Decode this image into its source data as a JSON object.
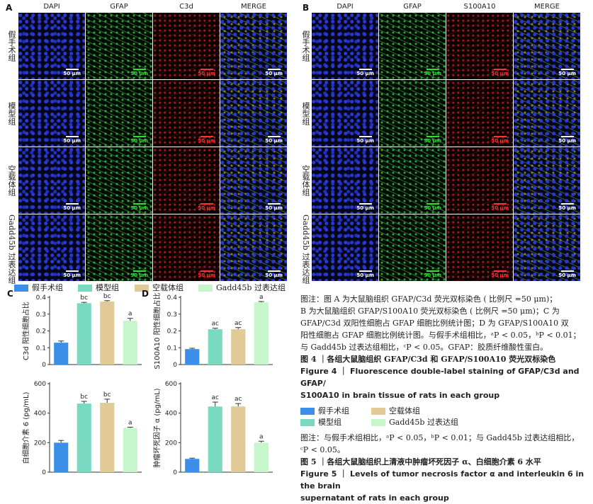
{
  "colors": {
    "sham": "#3d8ee8",
    "model": "#7ad9c1",
    "empty": "#e2ca97",
    "gadd": "#c6f6cc",
    "dapi_tint": "#1a2aa8",
    "gfap_tint": "#1f8a2a",
    "red_tint": "#b01818"
  },
  "panel_a": {
    "letter": "A",
    "columns": [
      "DAPI",
      "GFAP",
      "C3d",
      "MERGE"
    ],
    "scale_bars": [
      "50 μm",
      "50 μm",
      "50 μm",
      "50 μm"
    ]
  },
  "panel_b": {
    "letter": "B",
    "columns": [
      "DAPI",
      "GFAP",
      "S100A10",
      "MERGE"
    ],
    "scale_bars": [
      "50 μm",
      "50 μm",
      "50 μm",
      "50 μm"
    ]
  },
  "row_labels": [
    "假手术组",
    "模型组",
    "空载体组",
    "Gadd45b 过表达组"
  ],
  "legend": [
    {
      "label": "假手术组",
      "color": "#3d8ee8"
    },
    {
      "label": "模型组",
      "color": "#7ad9c1"
    },
    {
      "label": "空载体组",
      "color": "#e2ca97"
    },
    {
      "label": "Gadd45b 过表达组",
      "color": "#c6f6cc"
    }
  ],
  "chart_data": [
    {
      "panel": "C",
      "type": "bar",
      "ylabel": "C3d 阳性细胞占比",
      "ylim": [
        0,
        0.4
      ],
      "yticks": [
        0,
        0.1,
        0.2,
        0.3,
        0.4
      ],
      "ytick_labels": [
        "0",
        "0.1",
        "0.2",
        "0.3",
        "0.4"
      ],
      "categories": [
        "假手术组",
        "模型组",
        "空载体组",
        "Gadd45b 过表达组"
      ],
      "values": [
        0.13,
        0.365,
        0.375,
        0.26
      ],
      "errors": [
        0.01,
        0.005,
        0.005,
        0.015
      ],
      "labels": [
        "",
        "bc",
        "bc",
        "a"
      ]
    },
    {
      "panel": "D",
      "type": "bar",
      "ylabel": "S100A10 阳性细胞占比",
      "ylim": [
        0,
        0.4
      ],
      "yticks": [
        0,
        0.1,
        0.2,
        0.3,
        0.4
      ],
      "ytick_labels": [
        "0",
        "0.1",
        "0.2",
        "0.3",
        "0.4"
      ],
      "categories": [
        "假手术组",
        "模型组",
        "空载体组",
        "Gadd45b 过表达组"
      ],
      "values": [
        0.092,
        0.21,
        0.21,
        0.37
      ],
      "errors": [
        0.005,
        0.006,
        0.01,
        0.005
      ],
      "labels": [
        "",
        "ac",
        "ac",
        "a"
      ]
    },
    {
      "panel": "",
      "type": "bar",
      "ylabel": "白细胞介素 6 (pg/mL)",
      "ylim": [
        0,
        600
      ],
      "yticks": [
        0,
        200,
        400,
        600
      ],
      "ytick_labels": [
        "0",
        "200",
        "400",
        "600"
      ],
      "categories": [
        "假手术组",
        "模型组",
        "空载体组",
        "Gadd45b 过表达组"
      ],
      "values": [
        200,
        465,
        470,
        300
      ],
      "errors": [
        15,
        15,
        25,
        5
      ],
      "labels": [
        "",
        "bc",
        "bc",
        "a"
      ]
    },
    {
      "panel": "",
      "type": "bar",
      "ylabel": "肿瘤坏死因子 α (pg/mL)",
      "ylim": [
        0,
        600
      ],
      "yticks": [
        0,
        200,
        400,
        600
      ],
      "ytick_labels": [
        "0",
        "200",
        "400",
        "600"
      ],
      "categories": [
        "假手术组",
        "模型组",
        "空载体组",
        "Gadd45b 过表达组"
      ],
      "values": [
        90,
        445,
        445,
        200
      ],
      "errors": [
        5,
        30,
        20,
        10
      ],
      "labels": [
        "",
        "ac",
        "ac",
        "a"
      ]
    }
  ],
  "caption4": {
    "note_lines": [
      "图注：图 A 为大鼠脑组织 GFAP/C3d 荧光双标染色 ( 比例尺 =50 μm)；",
      "B 为大鼠脑组织 GFAP/S100A10 荧光双标染色 ( 比例尺 =50 μm)；C 为",
      "GFAP/C3d 双阳性细胞占 GFAP 细胞比例统计图；D 为 GFAP/S100A10 双",
      "阳性细胞占 GFAP 细胞比例统计图。与假手术组相比，ᵃP < 0.05，ᵇP < 0.01；",
      "与 Gadd45b 过表达组相比，ᶜP < 0.05。GFAP：胶质纤维酸性蛋白。"
    ],
    "title_cn": "图 4 ｜各组大鼠脑组织 GFAP/C3d 和 GFAP/S100A10 荧光双标染色",
    "title_en_1": "Figure 4 ｜ Fluorescence double-label staining of GFAP/C3d and GFAP/",
    "title_en_2": "S100A10 in brain tissue of rats in each group"
  },
  "legend5": [
    {
      "label": "假手术组",
      "color": "#3d8ee8"
    },
    {
      "label": "空载体组",
      "color": "#e2ca97"
    },
    {
      "label": "模型组",
      "color": "#7ad9c1"
    },
    {
      "label": "Gadd45b 过表达组",
      "color": "#c6f6cc"
    }
  ],
  "caption5": {
    "note_lines": [
      "图注：与假手术组相比，ᵃP < 0.05，ᵇP < 0.01；与 Gadd45b 过表达组相比，",
      "ᶜP < 0.05。"
    ],
    "title_cn": "图 5 ｜各组大鼠脑组织上清液中肿瘤坏死因子 α、白细胞介素 6 水平",
    "title_en_1": "Figure 5 ｜ Levels of tumor necrosis factor α and interleukin 6 in the brain",
    "title_en_2": "supernatant of rats in each group"
  }
}
